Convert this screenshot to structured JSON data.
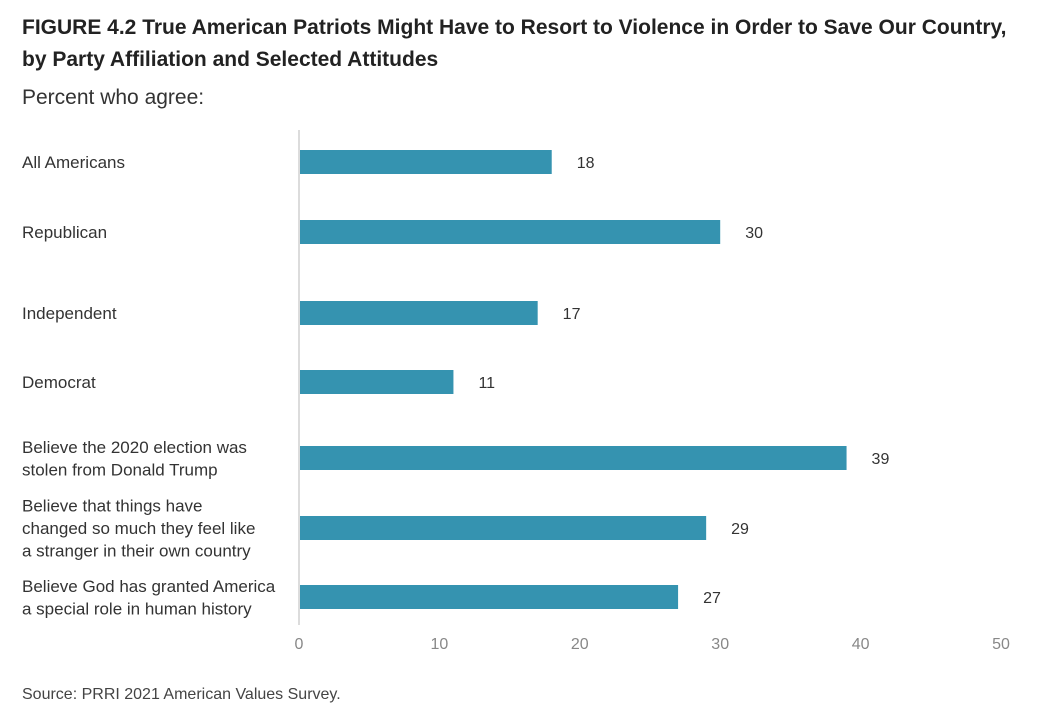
{
  "chart_data": {
    "type": "bar",
    "orientation": "horizontal",
    "title": "FIGURE 4.2  True American Patriots Might Have to Resort to Violence in Order to Save Our Country,  by Party Affiliation and Selected Attitudes",
    "subtitle": "Percent who agree:",
    "categories": [
      [
        "All Americans"
      ],
      [
        "Republican"
      ],
      [
        "Independent"
      ],
      [
        "Democrat"
      ],
      [
        "Believe the 2020 election was",
        "stolen from Donald Trump"
      ],
      [
        "Believe that things have",
        "changed so much they feel like",
        "a stranger in their own country"
      ],
      [
        "Believe God has granted America",
        "a special role in human history"
      ]
    ],
    "values": [
      18,
      30,
      17,
      11,
      39,
      29,
      27
    ],
    "xlim": [
      0,
      50
    ],
    "xticks": [
      0,
      10,
      20,
      30,
      40,
      50
    ],
    "xlabel": "",
    "ylabel": "",
    "grid": false,
    "bar_color": "#3593b0",
    "source": "Source: PRRI 2021 American Values Survey."
  }
}
